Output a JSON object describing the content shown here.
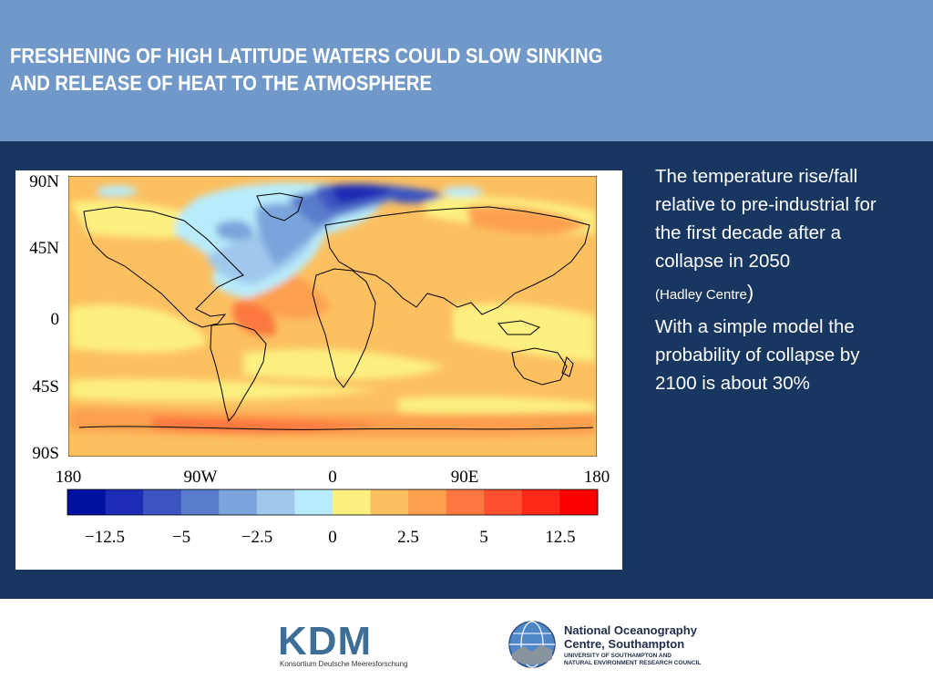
{
  "slide": {
    "title_lines": [
      "FRESHENING OF HIGH LATITUDE WATERS COULD SLOW SINKING",
      "AND RELEASE OF HEAT TO THE ATMOSPHERE"
    ]
  },
  "description": {
    "paragraph1": "The temperature rise/fall relative to pre-industrial for the first decade after a collapse in 2050",
    "source_open": "(Hadley Centre",
    "source_close": ")",
    "paragraph2": "With a simple model the probability of collapse by 2100 is about 30%"
  },
  "map": {
    "lat_labels": [
      "90N",
      "45N",
      "0",
      "45S",
      "90S"
    ],
    "lon_labels": [
      "180",
      "90W",
      "0",
      "90E",
      "180"
    ],
    "colorbar": {
      "colors": [
        "#0010a0",
        "#1c2cb4",
        "#3c54c0",
        "#5a7ccc",
        "#7ca4dc",
        "#a0c8ec",
        "#b8ecfc",
        "#fcf080",
        "#fcc060",
        "#fca050",
        "#fc7840",
        "#fc5030",
        "#fc2818",
        "#fc0000"
      ],
      "labels": [
        "−12.5",
        "−5",
        "−2.5",
        "0",
        "2.5",
        "5",
        "12.5"
      ]
    }
  },
  "footer": {
    "kdm_logo_text": "KDM",
    "kdm_subtitle": "Konsortium Deutsche Meeresforschung",
    "noc_name_line1": "National Oceanography",
    "noc_name_line2": "Centre, Southampton",
    "noc_sub_line1": "UNIVERSITY OF SOUTHAMPTON AND",
    "noc_sub_line2": "NATURAL ENVIRONMENT RESEARCH COUNCIL"
  }
}
